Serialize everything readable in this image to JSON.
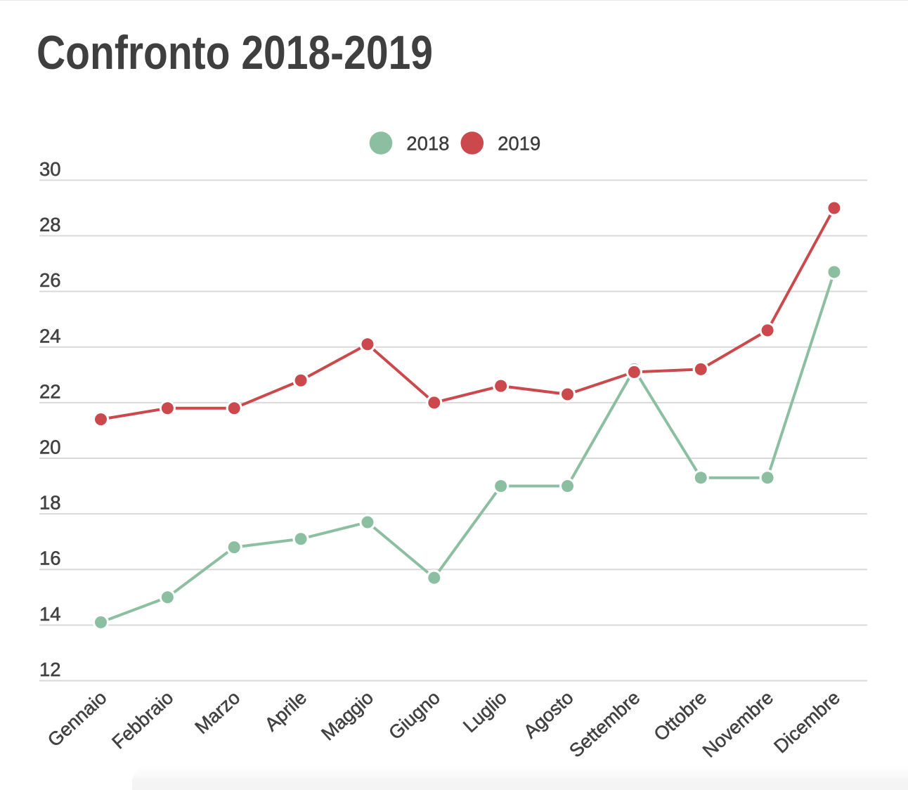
{
  "page": {
    "title": "Confronto 2018-2019"
  },
  "colors": {
    "series_2018": "#8cbfa2",
    "series_2019": "#cb494c",
    "gridline": "#d9d9d9",
    "axis_text": "#424242",
    "title_text": "#3f3f3f",
    "legend_text": "#3c3c3c",
    "background": "#ffffff"
  },
  "legend": {
    "items": [
      {
        "label": "2018",
        "color": "#8cbfa2"
      },
      {
        "label": "2019",
        "color": "#cb494c"
      }
    ]
  },
  "chart_data": {
    "type": "line",
    "title": "Confronto 2018-2019",
    "categories": [
      "Gennaio",
      "Febbraio",
      "Marzo",
      "Aprile",
      "Maggio",
      "Giugno",
      "Luglio",
      "Agosto",
      "Settembre",
      "Ottobre",
      "Novembre",
      "Dicembre"
    ],
    "series": [
      {
        "name": "2018",
        "color": "#8cbfa2",
        "values": [
          14.1,
          15.0,
          16.8,
          17.1,
          17.7,
          15.7,
          19.0,
          19.0,
          23.2,
          19.3,
          19.3,
          26.7
        ]
      },
      {
        "name": "2019",
        "color": "#cb494c",
        "values": [
          21.4,
          21.8,
          21.8,
          22.8,
          24.1,
          22.0,
          22.6,
          22.3,
          23.1,
          23.2,
          24.6,
          29.0
        ]
      }
    ],
    "xlabel": "",
    "ylabel": "",
    "ylim": [
      12,
      30
    ],
    "yticks": [
      30,
      28,
      26,
      24,
      22,
      20,
      18,
      16,
      14,
      12
    ],
    "grid": "horizontal",
    "legend_position": "top-center",
    "marker": "circle"
  }
}
